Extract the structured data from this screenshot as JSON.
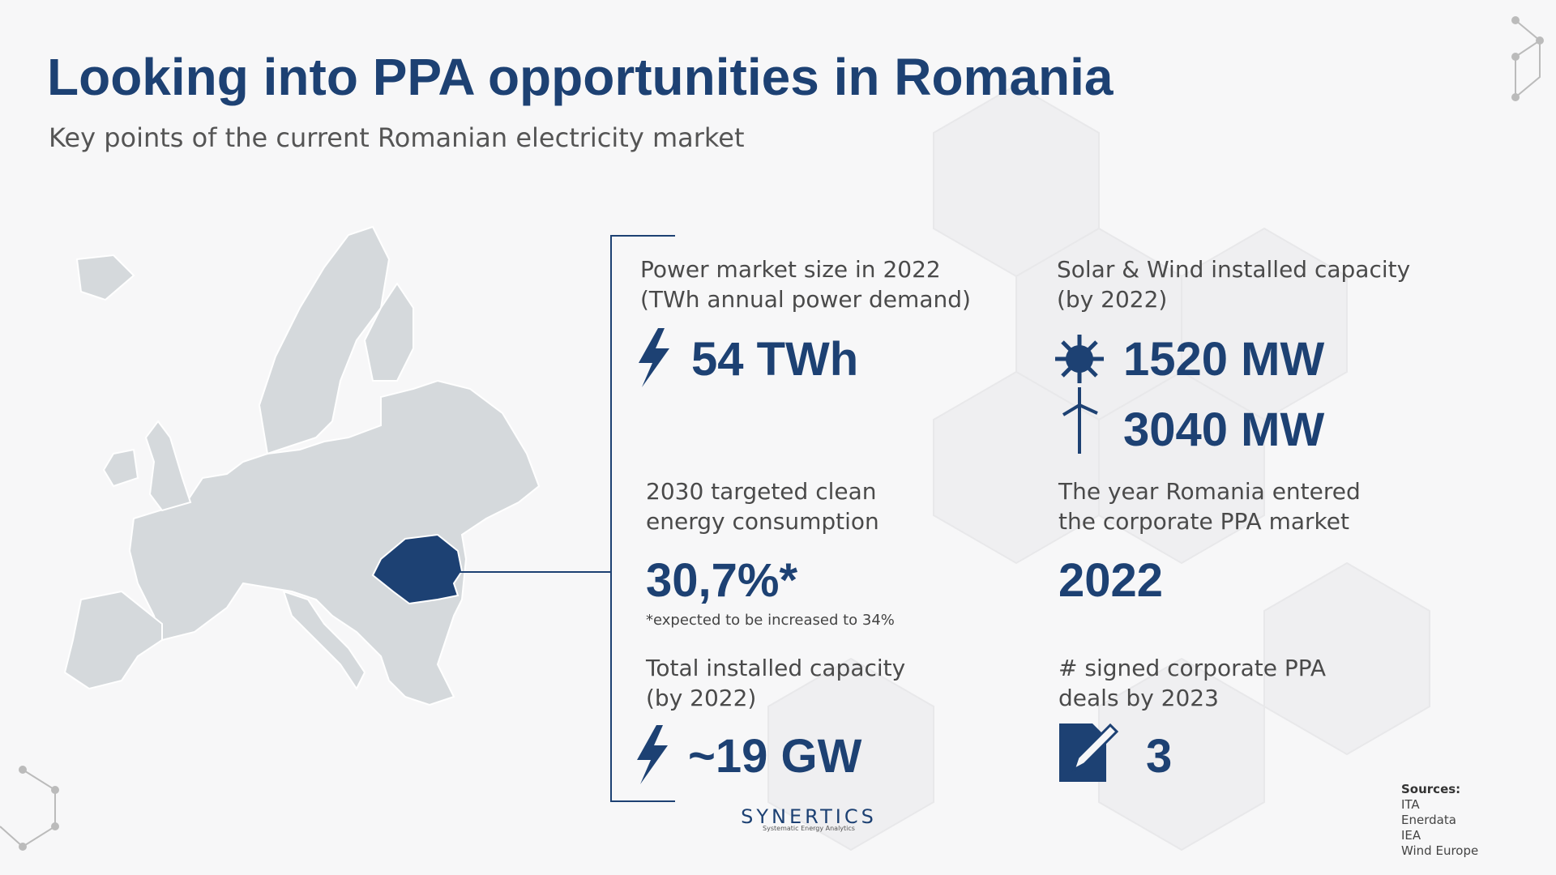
{
  "header": {
    "title": "Looking into PPA opportunities in Romania",
    "subtitle": "Key points of the current Romanian electricity market"
  },
  "stats": [
    {
      "label": [
        "Power market size in 2022",
        "(TWh annual power demand)"
      ],
      "values": [
        "54 TWh"
      ]
    },
    {
      "label": [
        "Solar & Wind installed capacity",
        "(by 2022)"
      ],
      "values": [
        "1520 MW",
        "3040 MW"
      ]
    },
    {
      "label": [
        "2030 targeted clean",
        "energy consumption"
      ],
      "values": [
        "30,7%*"
      ],
      "note": "*expected to be increased to 34%"
    },
    {
      "label": [
        "The year Romania entered",
        "the corporate PPA market"
      ],
      "values": [
        "2022"
      ]
    },
    {
      "label": [
        "Total installed capacity",
        "(by 2022)"
      ],
      "values": [
        "~19 GW"
      ]
    },
    {
      "label": [
        "# signed corporate PPA",
        "deals by 2023"
      ],
      "values": [
        "3"
      ]
    }
  ],
  "logo": {
    "name": "SYNERTICS",
    "tagline": "Systematic Energy Analytics"
  },
  "sources": {
    "title": "Sources:",
    "items": [
      "ITA",
      "Enerdata",
      "IEA",
      "Wind Europe"
    ]
  }
}
